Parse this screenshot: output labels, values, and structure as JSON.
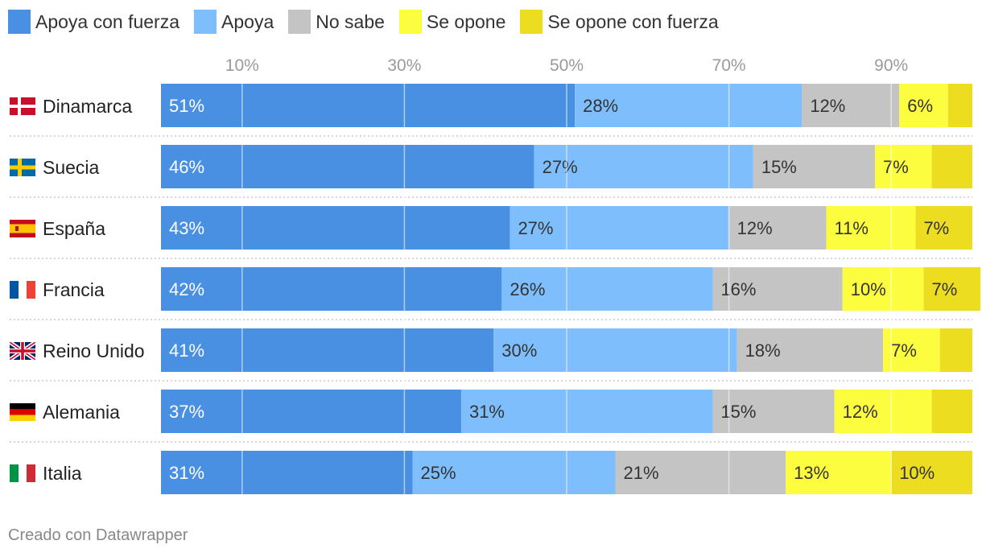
{
  "legend": [
    {
      "key": "strong_support",
      "label": "Apoya con fuerza",
      "color": "#4a90e2"
    },
    {
      "key": "support",
      "label": "Apoya",
      "color": "#7fbefd"
    },
    {
      "key": "dont_know",
      "label": "No sabe",
      "color": "#c4c4c4"
    },
    {
      "key": "oppose",
      "label": "Se opone",
      "color": "#fdfd40"
    },
    {
      "key": "strong_oppose",
      "label": "Se opone con fuerza",
      "color": "#eddd20"
    }
  ],
  "footer": "Creado con Datawrapper",
  "chart_data": {
    "type": "bar",
    "orientation": "horizontal",
    "stacked": true,
    "xlim": [
      0,
      100
    ],
    "xticks": [
      10,
      30,
      50,
      70,
      90
    ],
    "xtick_labels": [
      "10%",
      "30%",
      "50%",
      "70%",
      "90%"
    ],
    "categories": [
      "Dinamarca",
      "Suecia",
      "España",
      "Francia",
      "Reino Unido",
      "Alemania",
      "Italia"
    ],
    "flags": [
      "denmark-flag-icon",
      "sweden-flag-icon",
      "spain-flag-icon",
      "france-flag-icon",
      "uk-flag-icon",
      "germany-flag-icon",
      "italy-flag-icon"
    ],
    "series": [
      {
        "name": "Apoya con fuerza",
        "color": "#4a90e2",
        "values": [
          51,
          46,
          43,
          42,
          41,
          37,
          31
        ],
        "labels": [
          "51%",
          "46%",
          "43%",
          "42%",
          "41%",
          "37%",
          "31%"
        ]
      },
      {
        "name": "Apoya",
        "color": "#7fbefd",
        "values": [
          28,
          27,
          27,
          26,
          30,
          31,
          25
        ],
        "labels": [
          "28%",
          "27%",
          "27%",
          "26%",
          "30%",
          "31%",
          "25%"
        ]
      },
      {
        "name": "No sabe",
        "color": "#c4c4c4",
        "values": [
          12,
          15,
          12,
          16,
          18,
          15,
          21
        ],
        "labels": [
          "12%",
          "15%",
          "12%",
          "16%",
          "18%",
          "15%",
          "21%"
        ]
      },
      {
        "name": "Se opone",
        "color": "#fdfd40",
        "values": [
          6,
          7,
          11,
          10,
          7,
          12,
          13
        ],
        "labels": [
          "6%",
          "7%",
          "11%",
          "10%",
          "7%",
          "12%",
          "13%"
        ]
      },
      {
        "name": "Se opone con fuerza",
        "color": "#eddd20",
        "values": [
          3,
          5,
          7,
          7,
          4,
          5,
          10
        ],
        "labels": [
          "",
          "",
          "7%",
          "7%",
          "",
          "",
          "10%"
        ]
      }
    ]
  }
}
